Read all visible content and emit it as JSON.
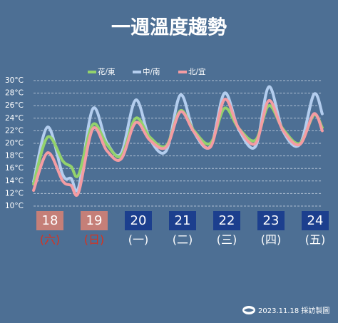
{
  "chart_data": {
    "type": "line",
    "title": "一週溫度趨勢",
    "x": [
      17.63,
      17.95,
      18.29,
      18.48,
      18.65,
      18.97,
      19.29,
      19.61,
      19.94,
      20.26,
      20.63,
      20.95,
      21.26,
      21.63,
      21.95,
      22.27,
      22.65,
      22.95,
      23.27,
      23.65,
      23.97,
      24.16
    ],
    "series": [
      {
        "name": "花/東",
        "color": "#93d26c",
        "values": [
          13.5,
          21,
          17.2,
          16.3,
          15,
          23,
          19.8,
          18,
          24,
          21,
          19.6,
          25.2,
          22,
          20,
          25.6,
          22.4,
          20.5,
          26,
          22.3,
          20,
          24.5,
          22.5
        ]
      },
      {
        "name": "中/南",
        "color": "#b3cdee",
        "values": [
          13.9,
          22.6,
          15,
          14.4,
          13,
          25.5,
          20.1,
          18.4,
          26.9,
          20.7,
          18.8,
          27.7,
          21.8,
          19.5,
          28,
          22.2,
          19.5,
          29,
          22,
          19.8,
          27.8,
          24.7
        ]
      },
      {
        "name": "北/宜",
        "color": "#f49ca3",
        "values": [
          12.5,
          18.5,
          14,
          13.3,
          12.2,
          22.3,
          18.8,
          17.5,
          23.3,
          20.5,
          19.4,
          25,
          21.8,
          19.4,
          27,
          22.4,
          20,
          26.8,
          22.1,
          19.8,
          24.7,
          22
        ]
      }
    ],
    "ylim": [
      10,
      30
    ],
    "yticks": [
      {
        "value": 10,
        "label": "10°C"
      },
      {
        "value": 12,
        "label": "12°C"
      },
      {
        "value": 14,
        "label": "14°C"
      },
      {
        "value": 16,
        "label": "16°C"
      },
      {
        "value": 18,
        "label": "18°C"
      },
      {
        "value": 20,
        "label": "20°C"
      },
      {
        "value": 22,
        "label": "22°C"
      },
      {
        "value": 24,
        "label": "24°C"
      },
      {
        "value": 26,
        "label": "26°C"
      },
      {
        "value": 28,
        "label": "28°C"
      },
      {
        "value": 30,
        "label": "30°C"
      }
    ],
    "xlim": [
      17.63,
      24.16
    ],
    "xticks": [
      18,
      19,
      20,
      21,
      22,
      23,
      24
    ],
    "weekdays": [
      {
        "label": "(六)",
        "box_color": "#c57f78",
        "text_color": "#d8321f"
      },
      {
        "label": "(日)",
        "box_color": "#c57f78",
        "text_color": "#d8321f"
      },
      {
        "label": "(一)",
        "box_color": "#1c3f8e",
        "text_color": "#ffffff"
      },
      {
        "label": "(二)",
        "box_color": "#1c3f8e",
        "text_color": "#ffffff"
      },
      {
        "label": "(三)",
        "box_color": "#1c3f8e",
        "text_color": "#ffffff"
      },
      {
        "label": "(四)",
        "box_color": "#1c3f8e",
        "text_color": "#ffffff"
      },
      {
        "label": "(五)",
        "box_color": "#1c3f8e",
        "text_color": "#ffffff"
      }
    ],
    "grid": true,
    "credit": "2023.11.18 採訪製圖"
  }
}
